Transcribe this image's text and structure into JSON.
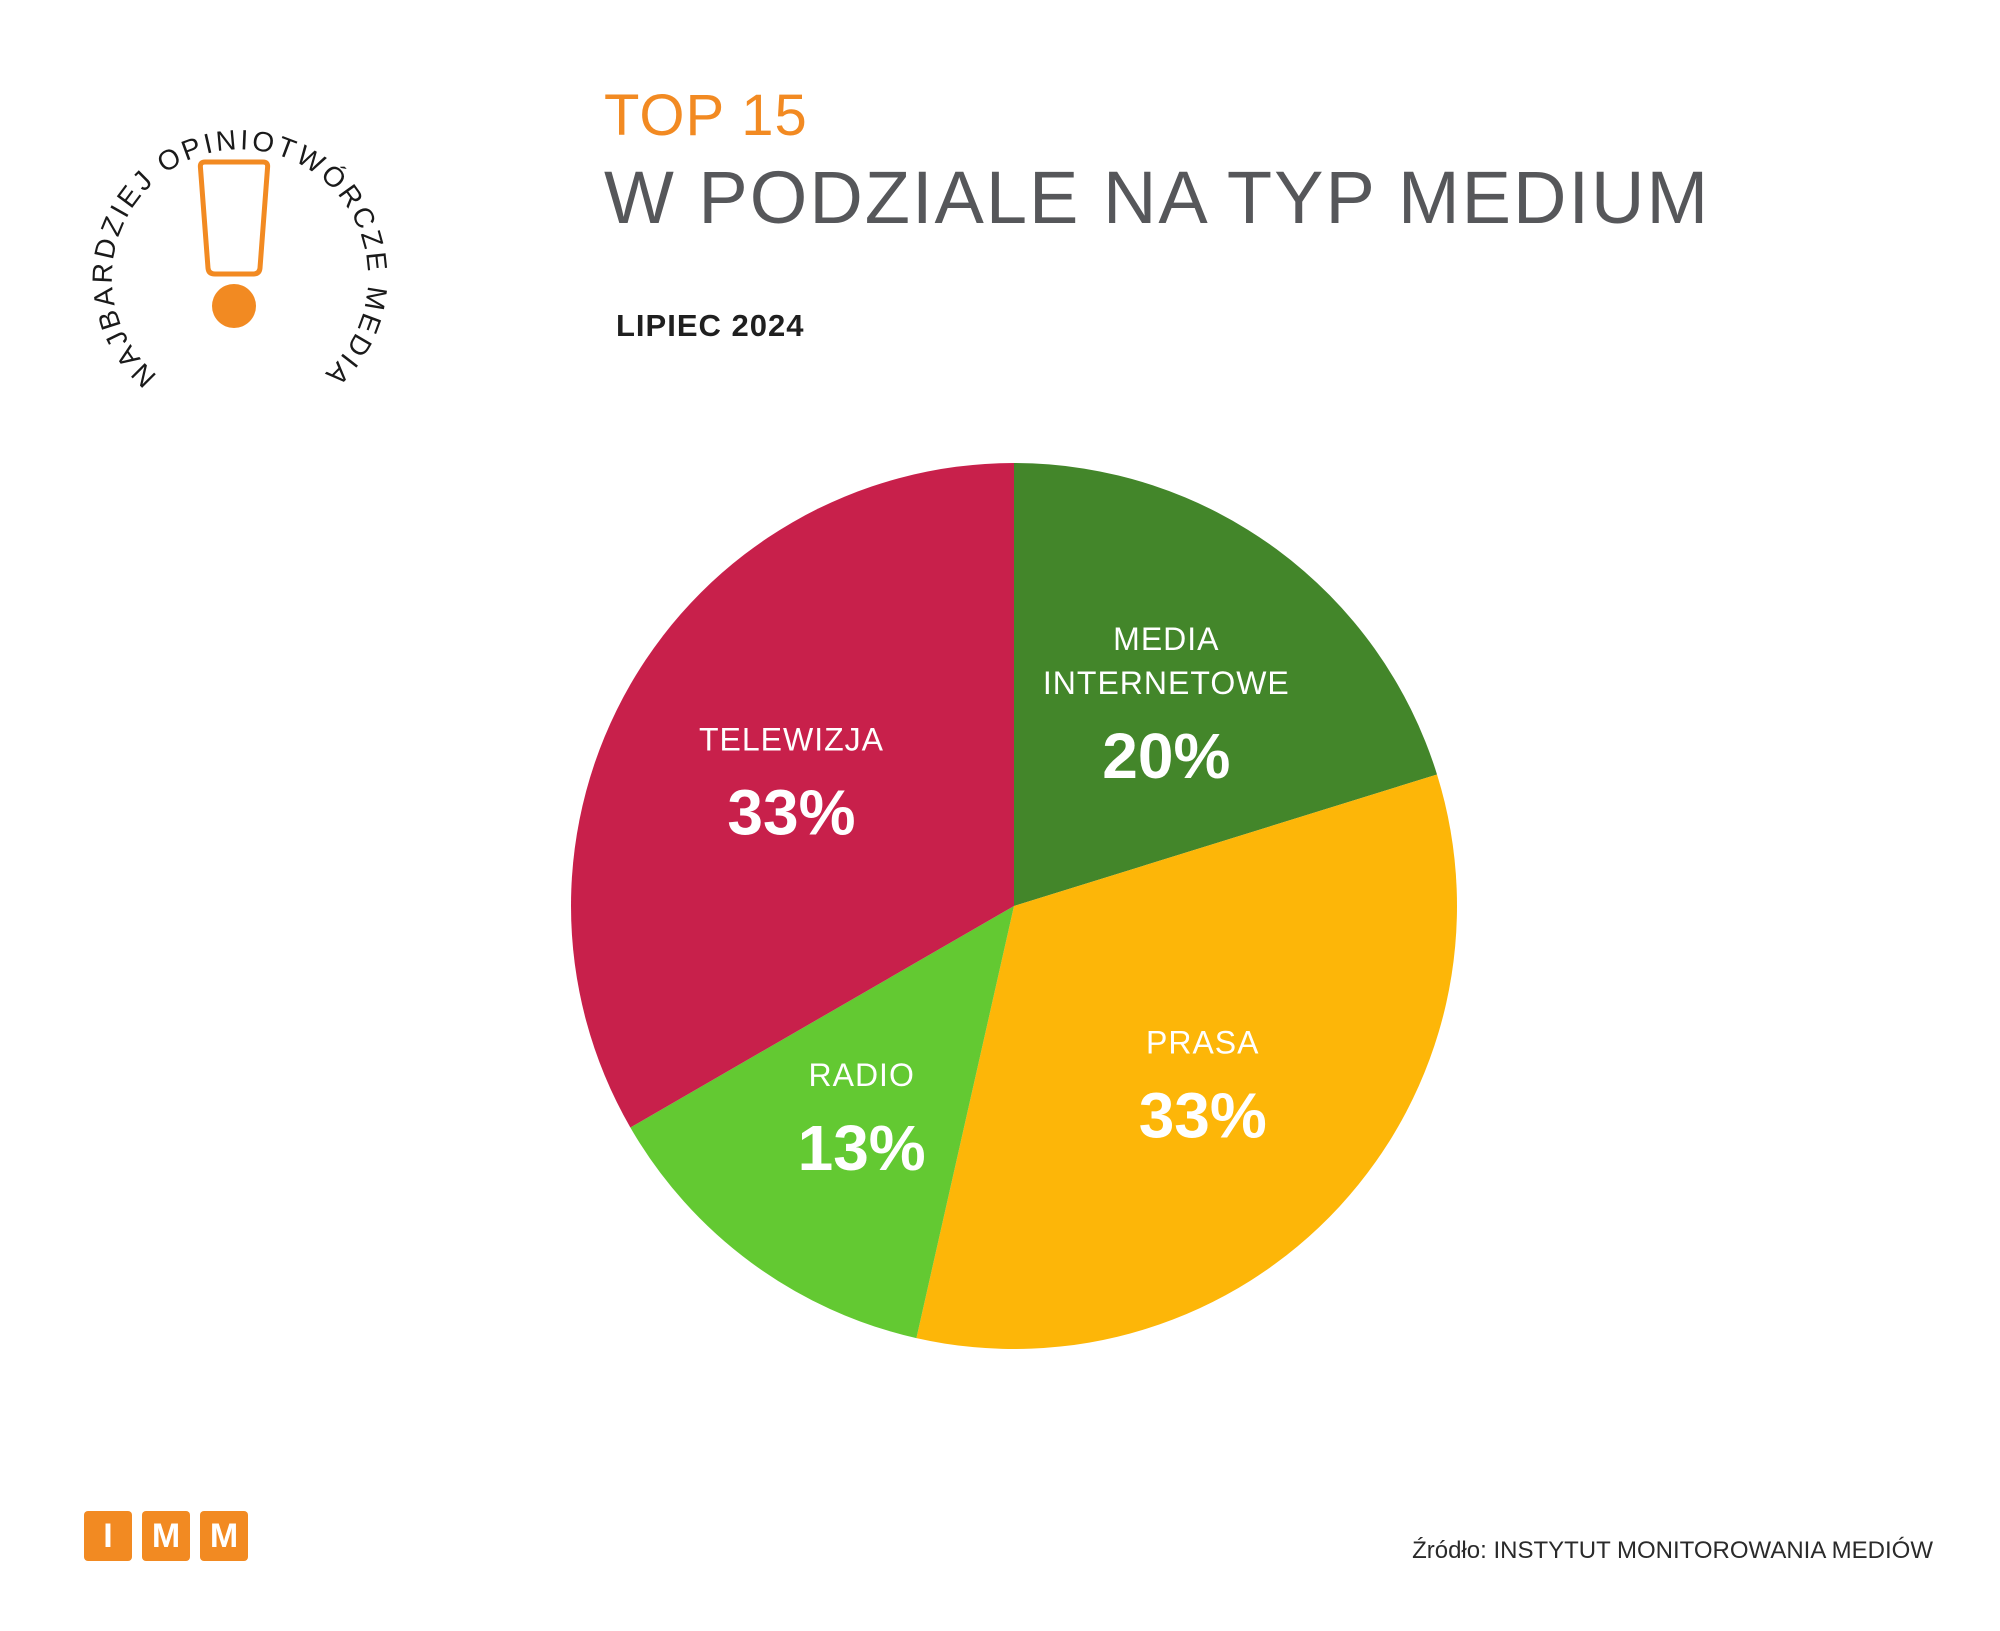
{
  "badge": {
    "ring_text": "NAJBARDZIEJ OPINIOTWÓRCZE MEDIA",
    "accent": "#f28a22",
    "icon": "exclamation-icon"
  },
  "header": {
    "top_label": "TOP 15",
    "title": "W PODZIALE NA TYP MEDIUM",
    "period": "LIPIEC 2024"
  },
  "chart_data": {
    "type": "pie",
    "title": "W PODZIALE NA TYP MEDIUM",
    "subtitle": "LIPIEC 2024",
    "slices": [
      {
        "label": [
          "MEDIA",
          "INTERNETOWE"
        ],
        "value": 20,
        "display": "20%",
        "color": "#43862a"
      },
      {
        "label": [
          "PRASA"
        ],
        "value": 33,
        "display": "33%",
        "color": "#fdb608"
      },
      {
        "label": [
          "RADIO"
        ],
        "value": 13,
        "display": "13%",
        "color": "#63c932"
      },
      {
        "label": [
          "TELEWIZJA"
        ],
        "value": 33,
        "display": "33%",
        "color": "#c8204b"
      }
    ]
  },
  "footer": {
    "logo_letters": [
      "I",
      "M",
      "M"
    ],
    "source": "Źródło: INSTYTUT MONITOROWANIA MEDIÓW"
  }
}
